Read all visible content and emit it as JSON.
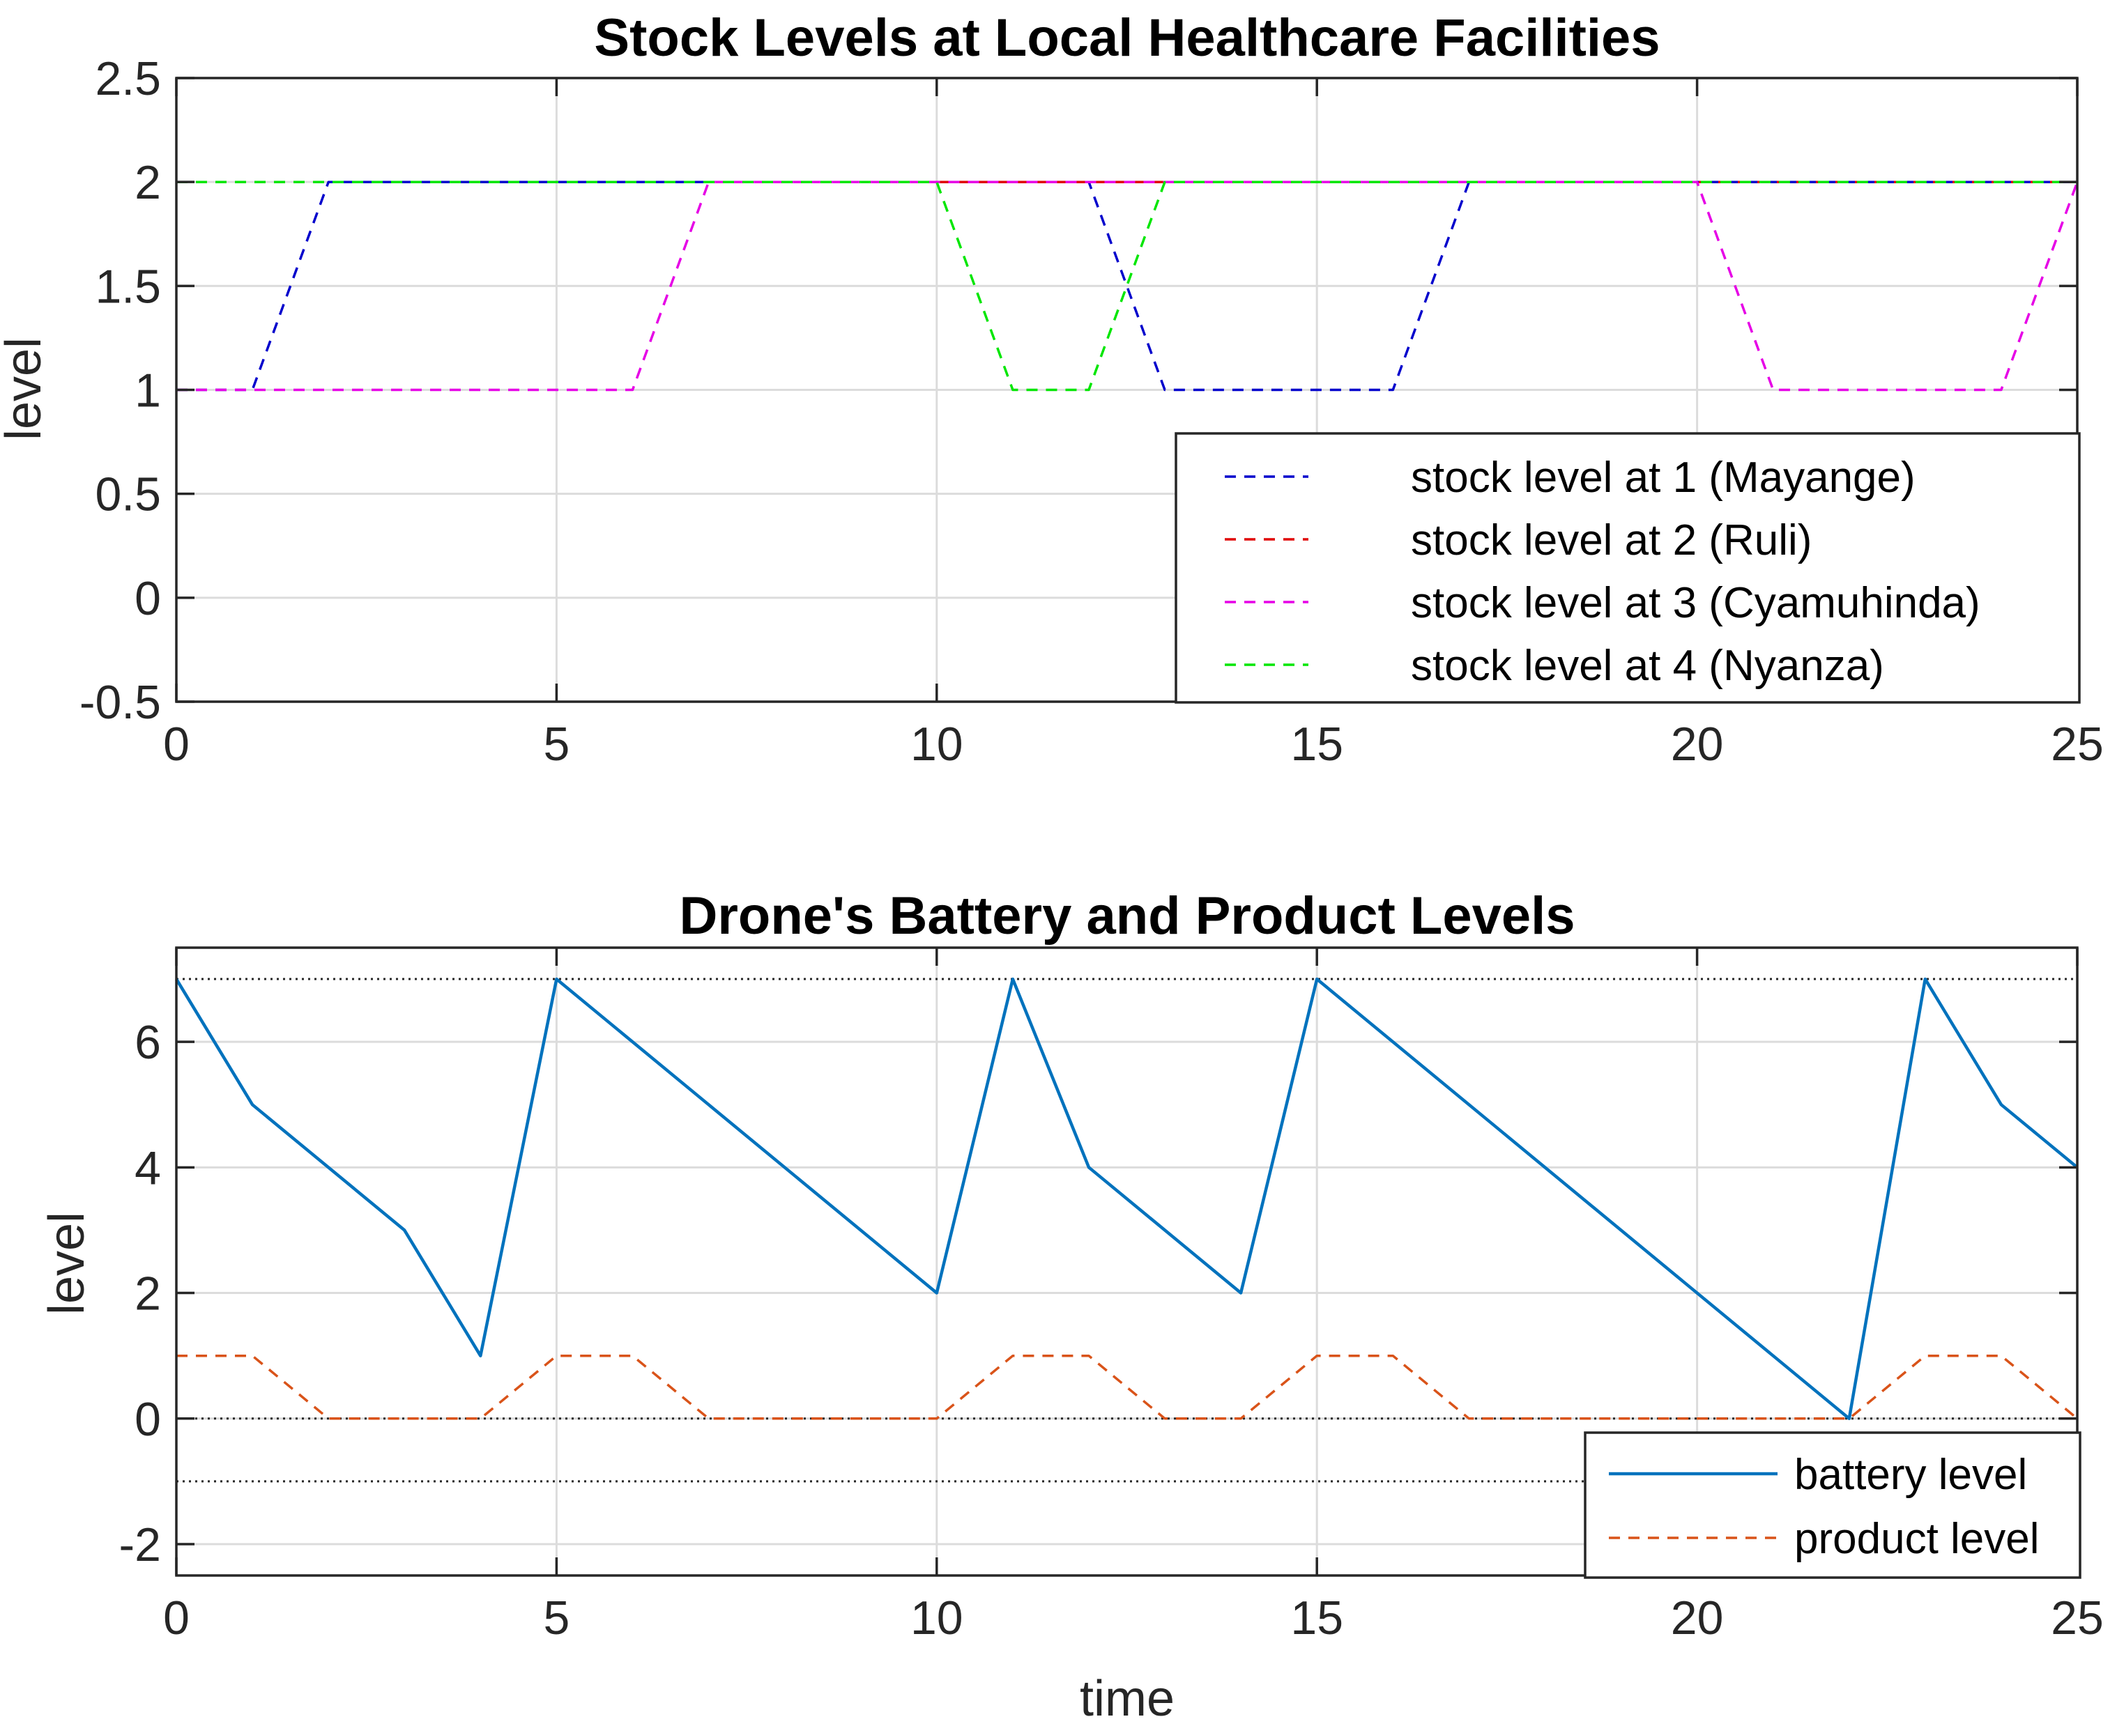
{
  "chart_data": [
    {
      "type": "line",
      "title": "Stock Levels at Local Healthcare Facilities",
      "xlabel": "",
      "ylabel": "level",
      "xlim": [
        0,
        25
      ],
      "ylim": [
        -0.5,
        2.5
      ],
      "xticks": [
        0,
        5,
        10,
        15,
        20,
        25
      ],
      "yticks": [
        -0.5,
        0,
        0.5,
        1,
        1.5,
        2,
        2.5
      ],
      "ytick_labels": [
        "-0.5",
        "0",
        "0.5",
        "1",
        "1.5",
        "2",
        "2.5"
      ],
      "grid": true,
      "legend_position": "bottom-right",
      "series": [
        {
          "name": "stock level at 1 (Mayange)",
          "color": "#0000cc",
          "dash": "dashed",
          "x": [
            0,
            1,
            2,
            12,
            13,
            16,
            17,
            25
          ],
          "y": [
            1,
            1,
            2,
            2,
            1,
            1,
            2,
            2
          ]
        },
        {
          "name": "stock level at 2 (Ruli)",
          "color": "#e00000",
          "dash": "dashed",
          "x": [
            0,
            25
          ],
          "y": [
            2,
            2
          ]
        },
        {
          "name": "stock level at 3 (Cyamuhinda)",
          "color": "#e600e6",
          "dash": "dashed",
          "x": [
            0,
            6,
            7,
            20,
            21,
            24,
            25
          ],
          "y": [
            1,
            1,
            2,
            2,
            1,
            1,
            2
          ]
        },
        {
          "name": "stock level at 4 (Nyanza)",
          "color": "#00e600",
          "dash": "dashed",
          "x": [
            0,
            10,
            11,
            12,
            13,
            25
          ],
          "y": [
            2,
            2,
            1,
            1,
            2,
            2
          ]
        }
      ]
    },
    {
      "type": "line",
      "title": "Drone's Battery and Product Levels",
      "xlabel": "time",
      "ylabel": "level",
      "xlim": [
        0,
        25
      ],
      "ylim": [
        -2.5,
        7.5
      ],
      "xticks": [
        0,
        5,
        10,
        15,
        20,
        25
      ],
      "yticks": [
        -2,
        0,
        2,
        4,
        6
      ],
      "ytick_labels": [
        "-2",
        "0",
        "2",
        "4",
        "6"
      ],
      "grid": true,
      "legend_position": "bottom-right",
      "reference_lines": [
        7,
        0,
        -1
      ],
      "series": [
        {
          "name": "battery level",
          "color": "#0072bd",
          "dash": "solid",
          "x": [
            0,
            1,
            3,
            4,
            5,
            10,
            11,
            12,
            14,
            15,
            22,
            23,
            24,
            25
          ],
          "y": [
            7,
            5,
            3,
            1,
            7,
            2,
            7,
            4,
            2,
            7,
            0,
            7,
            5,
            4
          ]
        },
        {
          "name": "product level",
          "color": "#d95319",
          "dash": "dashed",
          "x": [
            0,
            1,
            2,
            4,
            5,
            6,
            7,
            10,
            11,
            12,
            13,
            14,
            15,
            16,
            17,
            22,
            23,
            24,
            25
          ],
          "y": [
            1,
            1,
            0,
            0,
            1,
            1,
            0,
            0,
            1,
            1,
            0,
            0,
            1,
            1,
            0,
            0,
            1,
            1,
            0
          ]
        }
      ]
    }
  ]
}
